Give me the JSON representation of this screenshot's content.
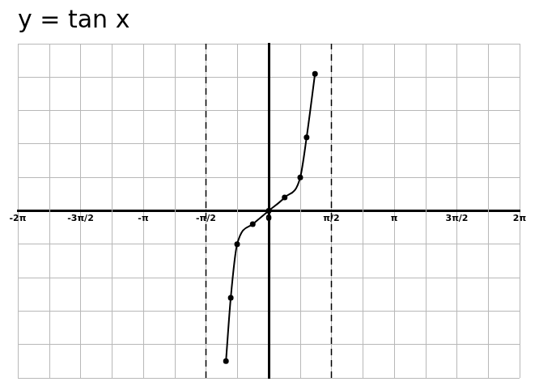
{
  "chart_data": {
    "type": "line",
    "title": "y = tan x",
    "x": [
      -1.07,
      -0.95,
      -0.79,
      -0.4,
      0,
      0.4,
      0.79,
      0.95,
      1.16
    ],
    "values": [
      -4.5,
      -2.6,
      -1,
      -0.4,
      0,
      0.4,
      1,
      2.2,
      4.1
    ],
    "color": "#000000",
    "marker": "circle",
    "asymptotes": {
      "x": [
        -1.5708,
        1.5708
      ],
      "line_style": "dashed"
    },
    "xlim": [
      -6.2832,
      6.2832
    ],
    "xticks": [
      {
        "value": -6.2832,
        "label": "-2π"
      },
      {
        "value": -4.7124,
        "label": "-3π/2"
      },
      {
        "value": -3.1416,
        "label": "-π"
      },
      {
        "value": -1.5708,
        "label": "-π/2"
      },
      0,
      {
        "value": 1.5708,
        "label": "π/2"
      },
      {
        "value": 3.1416,
        "label": "π"
      },
      {
        "value": 4.7124,
        "label": "3π/2"
      },
      {
        "value": 6.2832,
        "label": "2π"
      }
    ],
    "ylim": [
      -5,
      5
    ],
    "yticks": [
      -5,
      -4,
      -3,
      -2,
      -1,
      0,
      1,
      2,
      3,
      4,
      5
    ],
    "grid": true,
    "tick_labels": "x"
  }
}
